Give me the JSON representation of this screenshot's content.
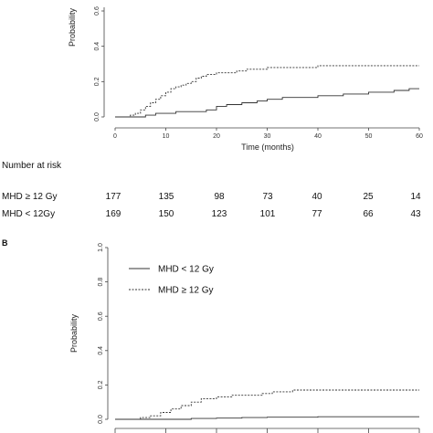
{
  "chart_data": [
    {
      "type": "line",
      "step": true,
      "xlabel": "Time (months)",
      "ylabel": "Probability",
      "xlim": [
        0,
        60
      ],
      "ylim": [
        0,
        0.6
      ],
      "x_ticks": [
        "0",
        "10",
        "20",
        "30",
        "40",
        "50",
        "60"
      ],
      "y_ticks": [
        "0.0",
        "0.2",
        "0.4",
        "0.6"
      ],
      "series": [
        {
          "style": "dashed",
          "x": [
            0,
            3,
            4,
            5,
            6,
            7,
            8,
            9,
            10,
            11,
            12,
            13,
            14,
            15,
            16,
            17,
            18,
            19,
            20,
            22,
            24,
            26,
            28,
            30,
            33,
            36,
            40,
            45,
            50,
            55,
            60
          ],
          "y": [
            0,
            0.01,
            0.02,
            0.04,
            0.06,
            0.08,
            0.1,
            0.12,
            0.14,
            0.16,
            0.17,
            0.18,
            0.19,
            0.2,
            0.22,
            0.23,
            0.24,
            0.24,
            0.25,
            0.25,
            0.26,
            0.27,
            0.27,
            0.28,
            0.28,
            0.28,
            0.29,
            0.29,
            0.29,
            0.29,
            0.29
          ]
        },
        {
          "style": "solid",
          "x": [
            0,
            6,
            8,
            10,
            12,
            15,
            18,
            20,
            22,
            25,
            28,
            30,
            33,
            36,
            40,
            45,
            50,
            55,
            58,
            60
          ],
          "y": [
            0,
            0.01,
            0.02,
            0.02,
            0.03,
            0.03,
            0.04,
            0.06,
            0.07,
            0.08,
            0.09,
            0.1,
            0.11,
            0.11,
            0.12,
            0.13,
            0.14,
            0.15,
            0.16,
            0.16
          ]
        }
      ],
      "risk_table": {
        "title": "Number at risk",
        "rows": [
          {
            "label": "MHD ≥ 12 Gy",
            "values": [
              "177",
              "135",
              "98",
              "73",
              "40",
              "25",
              "14"
            ]
          },
          {
            "label": "MHD < 12Gy",
            "values": [
              "169",
              "150",
              "123",
              "101",
              "77",
              "66",
              "43"
            ]
          }
        ]
      }
    },
    {
      "type": "line",
      "step": true,
      "panel_label": "B",
      "ylabel": "Probability",
      "xlim": [
        0,
        60
      ],
      "ylim": [
        0,
        1.0
      ],
      "y_ticks": [
        "0.0",
        "0.2",
        "0.4",
        "0.6",
        "0.8",
        "1.0"
      ],
      "legend": [
        {
          "label": "MHD < 12 Gy",
          "style": "solid"
        },
        {
          "label": "MHD ≥ 12 Gy",
          "style": "dashed"
        }
      ],
      "legend_position": "top-left",
      "series": [
        {
          "name": "MHD < 12 Gy",
          "style": "solid",
          "x": [
            0,
            15,
            20,
            25,
            30,
            40,
            50,
            60
          ],
          "y": [
            0,
            0.005,
            0.007,
            0.01,
            0.012,
            0.015,
            0.015,
            0.015
          ]
        },
        {
          "name": "MHD ≥ 12 Gy",
          "style": "dashed",
          "x": [
            0,
            5,
            7,
            9,
            11,
            13,
            15,
            17,
            20,
            23,
            26,
            29,
            31,
            35,
            40,
            45,
            50,
            55,
            60
          ],
          "y": [
            0,
            0.01,
            0.02,
            0.04,
            0.06,
            0.08,
            0.1,
            0.12,
            0.13,
            0.14,
            0.14,
            0.15,
            0.16,
            0.17,
            0.17,
            0.17,
            0.17,
            0.17,
            0.17
          ]
        }
      ]
    }
  ]
}
